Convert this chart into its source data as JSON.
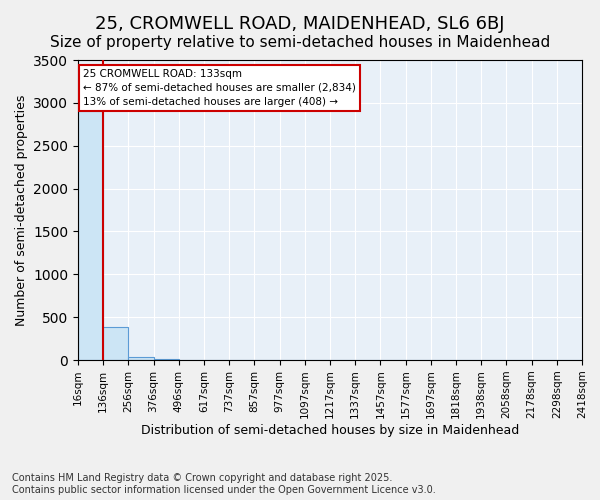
{
  "title": "25, CROMWELL ROAD, MAIDENHEAD, SL6 6BJ",
  "subtitle": "Size of property relative to semi-detached houses in Maidenhead",
  "xlabel": "Distribution of semi-detached houses by size in Maidenhead",
  "ylabel": "Number of semi-detached properties",
  "annotation_title": "25 CROMWELL ROAD: 133sqm",
  "annotation_line1": "← 87% of semi-detached houses are smaller (2,834)",
  "annotation_line2": "13% of semi-detached houses are larger (408) →",
  "footer_line1": "Contains HM Land Registry data © Crown copyright and database right 2025.",
  "footer_line2": "Contains public sector information licensed under the Open Government Licence v3.0.",
  "bin_labels": [
    "16sqm",
    "136sqm",
    "256sqm",
    "376sqm",
    "496sqm",
    "617sqm",
    "737sqm",
    "857sqm",
    "977sqm",
    "1097sqm",
    "1217sqm",
    "1337sqm",
    "1457sqm",
    "1577sqm",
    "1697sqm",
    "1818sqm",
    "1938sqm",
    "2058sqm",
    "2178sqm",
    "2298sqm",
    "2418sqm"
  ],
  "bar_heights": [
    2900,
    380,
    30,
    10,
    5,
    3,
    2,
    1,
    1,
    1,
    1,
    0,
    0,
    0,
    0,
    0,
    0,
    0,
    0,
    0
  ],
  "bar_color": "#cce5f5",
  "bar_edge_color": "#5b9bd5",
  "vline_color": "#cc0000",
  "annotation_box_color": "#cc0000",
  "ylim": [
    0,
    3500
  ],
  "background_color": "#e8f0f8",
  "fig_background_color": "#f0f0f0",
  "grid_color": "#ffffff",
  "title_fontsize": 13,
  "subtitle_fontsize": 11,
  "axis_label_fontsize": 9,
  "tick_fontsize": 7.5,
  "footer_fontsize": 7,
  "annotation_fontsize": 7.5
}
